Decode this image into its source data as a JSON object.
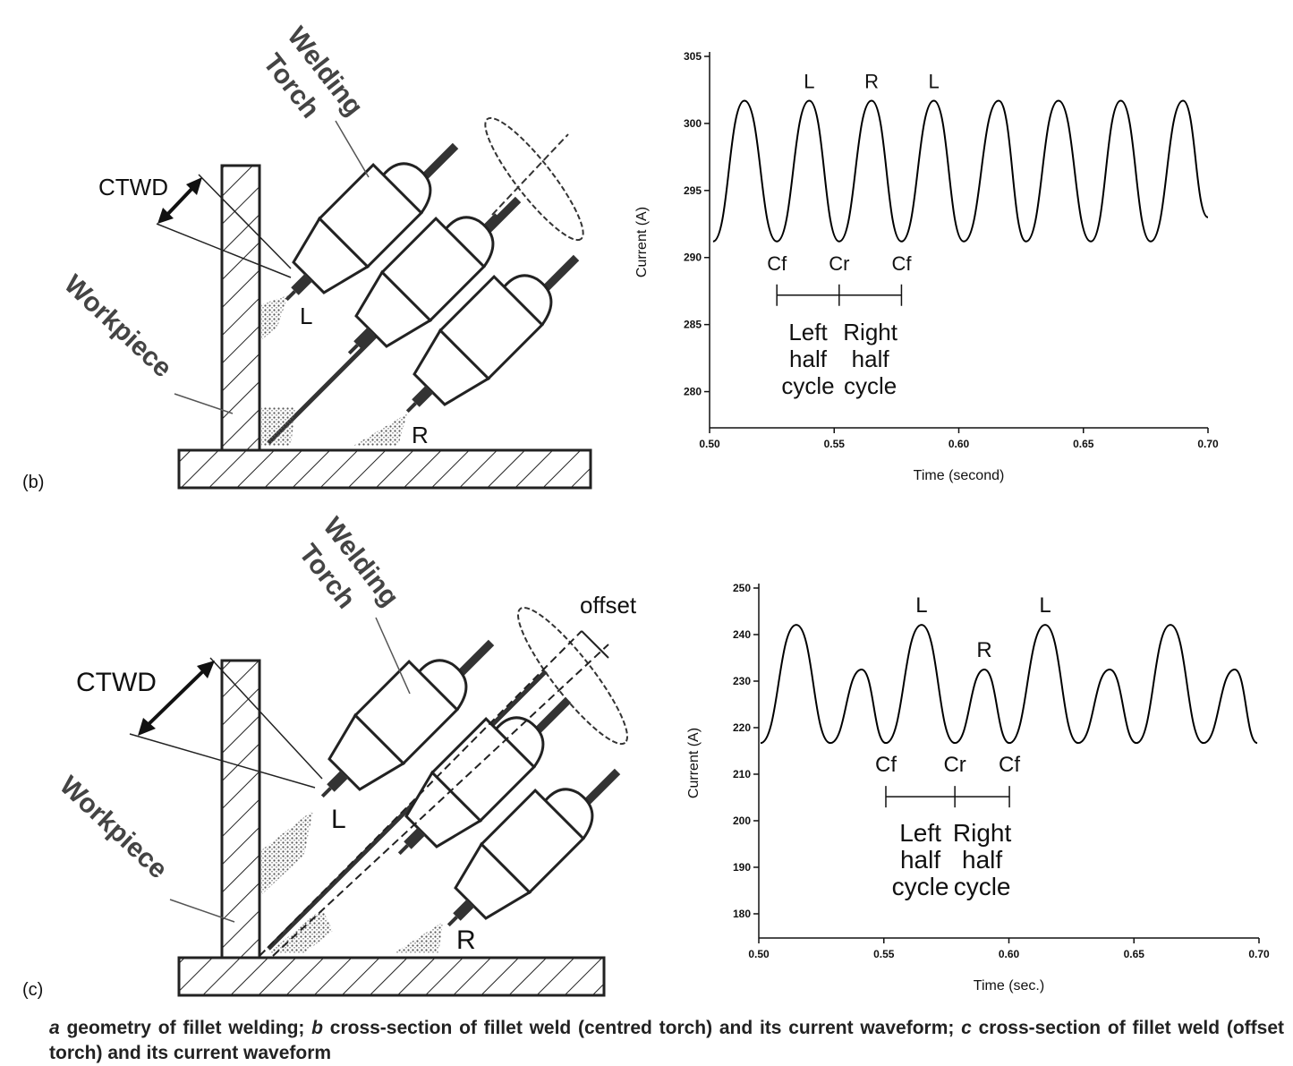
{
  "diagram_b": {
    "panel_label": "(b)",
    "torch_label": [
      "Welding",
      "Torch"
    ],
    "ctwd": "CTWD",
    "workpiece": "Workpiece",
    "left": "L",
    "right": "R"
  },
  "diagram_c": {
    "panel_label": "(c)",
    "torch_label": [
      "Welding",
      "Torch"
    ],
    "ctwd": "CTWD",
    "workpiece": "Workpiece",
    "left": "L",
    "right": "R",
    "offset": "offset"
  },
  "chart_data": [
    {
      "type": "line",
      "color": "#000000",
      "x": [
        0.5014,
        0.514,
        0.527,
        0.54,
        0.552,
        0.565,
        0.577,
        0.59,
        0.602,
        0.616,
        0.627,
        0.64,
        0.653,
        0.665,
        0.677,
        0.69,
        0.7
      ],
      "values": [
        291.2,
        301.7,
        291.2,
        301.7,
        291.2,
        301.7,
        291.2,
        301.7,
        291.2,
        301.7,
        291.2,
        301.7,
        291.2,
        301.7,
        291.2,
        301.7,
        293
      ],
      "xlim": [
        0.5,
        0.7
      ],
      "xticks": [
        {
          "value": 0.5,
          "label": "0.50"
        },
        0.55,
        {
          "value": 0.6,
          "label": "0.60"
        },
        0.65,
        {
          "value": 0.7,
          "label": "0.70"
        }
      ],
      "ylim": [
        277.3,
        305
      ],
      "yticks": [
        280,
        285,
        290,
        295,
        300,
        305
      ],
      "xlabel": "Time (second)",
      "ylabel": "Current (A)",
      "peak_labels": [
        "L",
        "R",
        "L"
      ],
      "cycle_marks": [
        "Cf",
        "Cr",
        "Cf"
      ],
      "half_cycles": [
        [
          "Left",
          "half",
          "cycle"
        ],
        [
          "Right",
          "half",
          "cycle"
        ]
      ]
    },
    {
      "type": "line",
      "color": "#000000",
      "x": [
        0.5007,
        0.515,
        0.5286,
        0.5411,
        0.5508,
        0.5651,
        0.5784,
        0.5902,
        0.6002,
        0.6145,
        0.6277,
        0.6403,
        0.651,
        0.6646,
        0.6778,
        0.6903,
        0.6993
      ],
      "values": [
        216.7,
        242.1,
        216.7,
        232.5,
        216.7,
        242.1,
        216.7,
        232.5,
        216.7,
        242.1,
        216.7,
        232.5,
        216.7,
        242.1,
        216.7,
        232.5,
        216.7
      ],
      "xlim": [
        0.5,
        0.7
      ],
      "xticks": [
        {
          "value": 0.5,
          "label": "0.50"
        },
        0.55,
        {
          "value": 0.6,
          "label": "0.60"
        },
        0.65,
        {
          "value": 0.7,
          "label": "0.70"
        }
      ],
      "ylim": [
        174.8,
        250
      ],
      "yticks": [
        180,
        190,
        200,
        210,
        220,
        230,
        240,
        250
      ],
      "xlabel": "Time (sec.)",
      "ylabel": "Current (A)",
      "peak_labels": [
        "L",
        "R",
        "L"
      ],
      "cycle_marks": [
        "Cf",
        "Cr",
        "Cf"
      ],
      "half_cycles": [
        [
          "Left",
          "half",
          "cycle"
        ],
        [
          "Right",
          "half",
          "cycle"
        ]
      ]
    }
  ],
  "caption": [
    {
      "letter": "a",
      "text": " geometry of fillet welding; "
    },
    {
      "letter": "b",
      "text": " cross-section of fillet weld (centred torch) and its current waveform; "
    },
    {
      "letter": "c",
      "text": " cross-section of fillet weld (offset torch) and its current waveform"
    }
  ]
}
